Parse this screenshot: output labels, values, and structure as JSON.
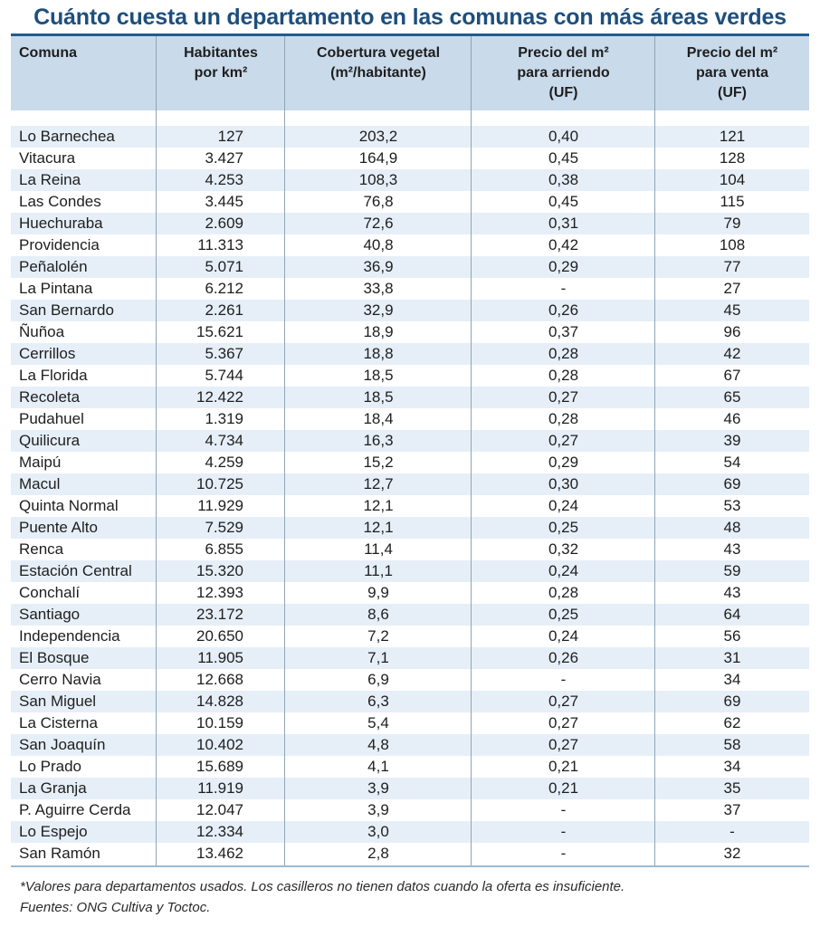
{
  "title": "Cuánto cuesta un departamento en las comunas con más áreas verdes",
  "columns": {
    "comuna": "Comuna",
    "habitantes": "Habitantes\npor km²",
    "cobertura": "Cobertura vegetal\n(m²/habitante)",
    "arriendo": "Precio del m²\npara arriendo\n(UF)",
    "venta": "Precio del m²\npara venta\n(UF)"
  },
  "rows": [
    {
      "comuna": "Lo Barnechea",
      "habitantes": "127",
      "cobertura": "203,2",
      "arriendo": "0,40",
      "venta": "121"
    },
    {
      "comuna": "Vitacura",
      "habitantes": "3.427",
      "cobertura": "164,9",
      "arriendo": "0,45",
      "venta": "128"
    },
    {
      "comuna": "La Reina",
      "habitantes": "4.253",
      "cobertura": "108,3",
      "arriendo": "0,38",
      "venta": "104"
    },
    {
      "comuna": "Las Condes",
      "habitantes": "3.445",
      "cobertura": "76,8",
      "arriendo": "0,45",
      "venta": "115"
    },
    {
      "comuna": "Huechuraba",
      "habitantes": "2.609",
      "cobertura": "72,6",
      "arriendo": "0,31",
      "venta": "79"
    },
    {
      "comuna": "Providencia",
      "habitantes": "11.313",
      "cobertura": "40,8",
      "arriendo": "0,42",
      "venta": "108"
    },
    {
      "comuna": "Peñalolén",
      "habitantes": "5.071",
      "cobertura": "36,9",
      "arriendo": "0,29",
      "venta": "77"
    },
    {
      "comuna": "La Pintana",
      "habitantes": "6.212",
      "cobertura": "33,8",
      "arriendo": "-",
      "venta": "27"
    },
    {
      "comuna": "San Bernardo",
      "habitantes": "2.261",
      "cobertura": "32,9",
      "arriendo": "0,26",
      "venta": "45"
    },
    {
      "comuna": "Ñuñoa",
      "habitantes": "15.621",
      "cobertura": "18,9",
      "arriendo": "0,37",
      "venta": "96"
    },
    {
      "comuna": "Cerrillos",
      "habitantes": "5.367",
      "cobertura": "18,8",
      "arriendo": "0,28",
      "venta": "42"
    },
    {
      "comuna": "La Florida",
      "habitantes": "5.744",
      "cobertura": "18,5",
      "arriendo": "0,28",
      "venta": "67"
    },
    {
      "comuna": "Recoleta",
      "habitantes": "12.422",
      "cobertura": "18,5",
      "arriendo": "0,27",
      "venta": "65"
    },
    {
      "comuna": "Pudahuel",
      "habitantes": "1.319",
      "cobertura": "18,4",
      "arriendo": "0,28",
      "venta": "46"
    },
    {
      "comuna": "Quilicura",
      "habitantes": "4.734",
      "cobertura": "16,3",
      "arriendo": "0,27",
      "venta": "39"
    },
    {
      "comuna": "Maipú",
      "habitantes": "4.259",
      "cobertura": "15,2",
      "arriendo": "0,29",
      "venta": "54"
    },
    {
      "comuna": "Macul",
      "habitantes": "10.725",
      "cobertura": "12,7",
      "arriendo": "0,30",
      "venta": "69"
    },
    {
      "comuna": "Quinta Normal",
      "habitantes": "11.929",
      "cobertura": "12,1",
      "arriendo": "0,24",
      "venta": "53"
    },
    {
      "comuna": "Puente Alto",
      "habitantes": "7.529",
      "cobertura": "12,1",
      "arriendo": "0,25",
      "venta": "48"
    },
    {
      "comuna": "Renca",
      "habitantes": "6.855",
      "cobertura": "11,4",
      "arriendo": "0,32",
      "venta": "43"
    },
    {
      "comuna": "Estación Central",
      "habitantes": "15.320",
      "cobertura": "11,1",
      "arriendo": "0,24",
      "venta": "59"
    },
    {
      "comuna": "Conchalí",
      "habitantes": "12.393",
      "cobertura": "9,9",
      "arriendo": "0,28",
      "venta": "43"
    },
    {
      "comuna": "Santiago",
      "habitantes": "23.172",
      "cobertura": "8,6",
      "arriendo": "0,25",
      "venta": "64"
    },
    {
      "comuna": "Independencia",
      "habitantes": "20.650",
      "cobertura": "7,2",
      "arriendo": "0,24",
      "venta": "56"
    },
    {
      "comuna": "El Bosque",
      "habitantes": "11.905",
      "cobertura": "7,1",
      "arriendo": "0,26",
      "venta": "31"
    },
    {
      "comuna": "Cerro Navia",
      "habitantes": "12.668",
      "cobertura": "6,9",
      "arriendo": "-",
      "venta": "34"
    },
    {
      "comuna": "San Miguel",
      "habitantes": "14.828",
      "cobertura": "6,3",
      "arriendo": "0,27",
      "venta": "69"
    },
    {
      "comuna": "La Cisterna",
      "habitantes": "10.159",
      "cobertura": "5,4",
      "arriendo": "0,27",
      "venta": "62"
    },
    {
      "comuna": "San Joaquín",
      "habitantes": "10.402",
      "cobertura": "4,8",
      "arriendo": "0,27",
      "venta": "58"
    },
    {
      "comuna": "Lo Prado",
      "habitantes": "15.689",
      "cobertura": "4,1",
      "arriendo": "0,21",
      "venta": "34"
    },
    {
      "comuna": "La Granja",
      "habitantes": "11.919",
      "cobertura": "3,9",
      "arriendo": "0,21",
      "venta": "35"
    },
    {
      "comuna": "P. Aguirre Cerda",
      "habitantes": "12.047",
      "cobertura": "3,9",
      "arriendo": "-",
      "venta": "37"
    },
    {
      "comuna": "Lo Espejo",
      "habitantes": "12.334",
      "cobertura": "3,0",
      "arriendo": "-",
      "venta": "-"
    },
    {
      "comuna": "San Ramón",
      "habitantes": "13.462",
      "cobertura": "2,8",
      "arriendo": "-",
      "venta": "32"
    }
  ],
  "footer": {
    "note": "*Valores para departamentos usados. Los casilleros no tienen datos cuando la oferta es insuficiente.",
    "sources": "Fuentes: ONG Cultiva y Toctoc."
  },
  "colors": {
    "title": "#1d4f7d",
    "header_bg": "#c9daea",
    "stripe": "#e6eff8",
    "rule": "#1f5d93"
  }
}
